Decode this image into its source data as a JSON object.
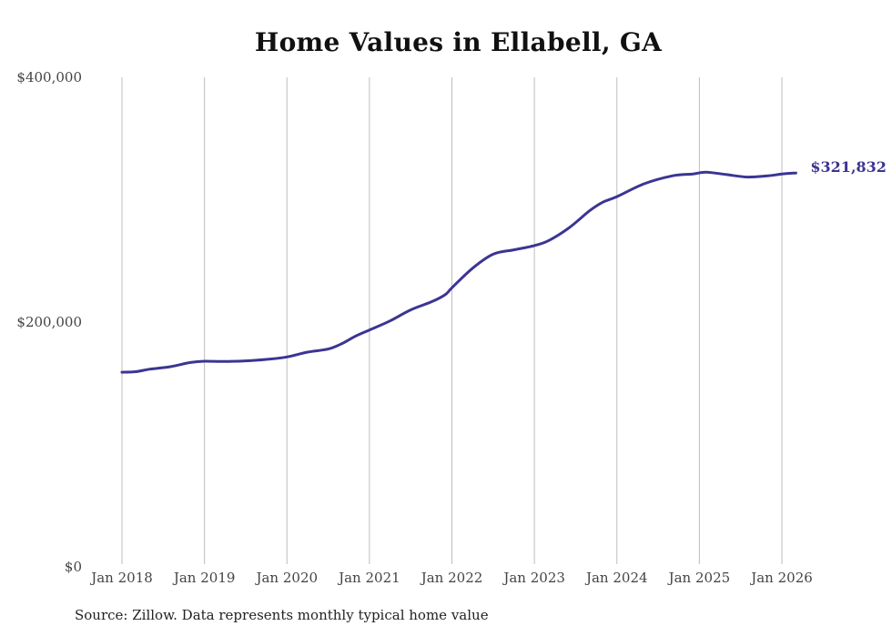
{
  "chart_data": {
    "type": "line",
    "title": "Home Values in Ellabell, GA",
    "xlabel": "",
    "ylabel": "",
    "ylim": [
      0,
      400000
    ],
    "xlim": [
      2018.0,
      2026.0
    ],
    "grid": "vertical",
    "y_ticks": [
      {
        "value": 0,
        "label": "$0"
      },
      {
        "value": 200000,
        "label": "$200,000"
      },
      {
        "value": 400000,
        "label": "$400,000"
      }
    ],
    "x_ticks": [
      {
        "value": 2018,
        "label": "Jan 2018"
      },
      {
        "value": 2019,
        "label": "Jan 2019"
      },
      {
        "value": 2020,
        "label": "Jan 2020"
      },
      {
        "value": 2021,
        "label": "Jan 2021"
      },
      {
        "value": 2022,
        "label": "Jan 2022"
      },
      {
        "value": 2023,
        "label": "Jan 2023"
      },
      {
        "value": 2024,
        "label": "Jan 2024"
      },
      {
        "value": 2025,
        "label": "Jan 2025"
      },
      {
        "value": 2026,
        "label": "Jan 2026"
      }
    ],
    "series": [
      {
        "name": "Typical home value",
        "color": "#3b3593",
        "end_label": "$321,832",
        "points": [
          [
            2018.0,
            159000
          ],
          [
            2018.17,
            159500
          ],
          [
            2018.33,
            161500
          ],
          [
            2018.58,
            163500
          ],
          [
            2018.83,
            167000
          ],
          [
            2019.0,
            168000
          ],
          [
            2019.25,
            167800
          ],
          [
            2019.5,
            168300
          ],
          [
            2019.75,
            169500
          ],
          [
            2020.0,
            171500
          ],
          [
            2020.25,
            175500
          ],
          [
            2020.5,
            178000
          ],
          [
            2020.67,
            182500
          ],
          [
            2020.83,
            188500
          ],
          [
            2021.0,
            193500
          ],
          [
            2021.25,
            201000
          ],
          [
            2021.5,
            210000
          ],
          [
            2021.75,
            216500
          ],
          [
            2021.92,
            222500
          ],
          [
            2022.0,
            228000
          ],
          [
            2022.25,
            244000
          ],
          [
            2022.5,
            255500
          ],
          [
            2022.75,
            259000
          ],
          [
            2023.0,
            262500
          ],
          [
            2023.17,
            266500
          ],
          [
            2023.42,
            277000
          ],
          [
            2023.67,
            291000
          ],
          [
            2023.83,
            298000
          ],
          [
            2024.0,
            302500
          ],
          [
            2024.33,
            313000
          ],
          [
            2024.67,
            319500
          ],
          [
            2024.92,
            321000
          ],
          [
            2025.08,
            322500
          ],
          [
            2025.33,
            320500
          ],
          [
            2025.58,
            318500
          ],
          [
            2025.83,
            319500
          ],
          [
            2026.0,
            321000
          ],
          [
            2026.17,
            321832
          ]
        ]
      }
    ]
  },
  "source_note": "Source: Zillow. Data represents monthly typical home value"
}
